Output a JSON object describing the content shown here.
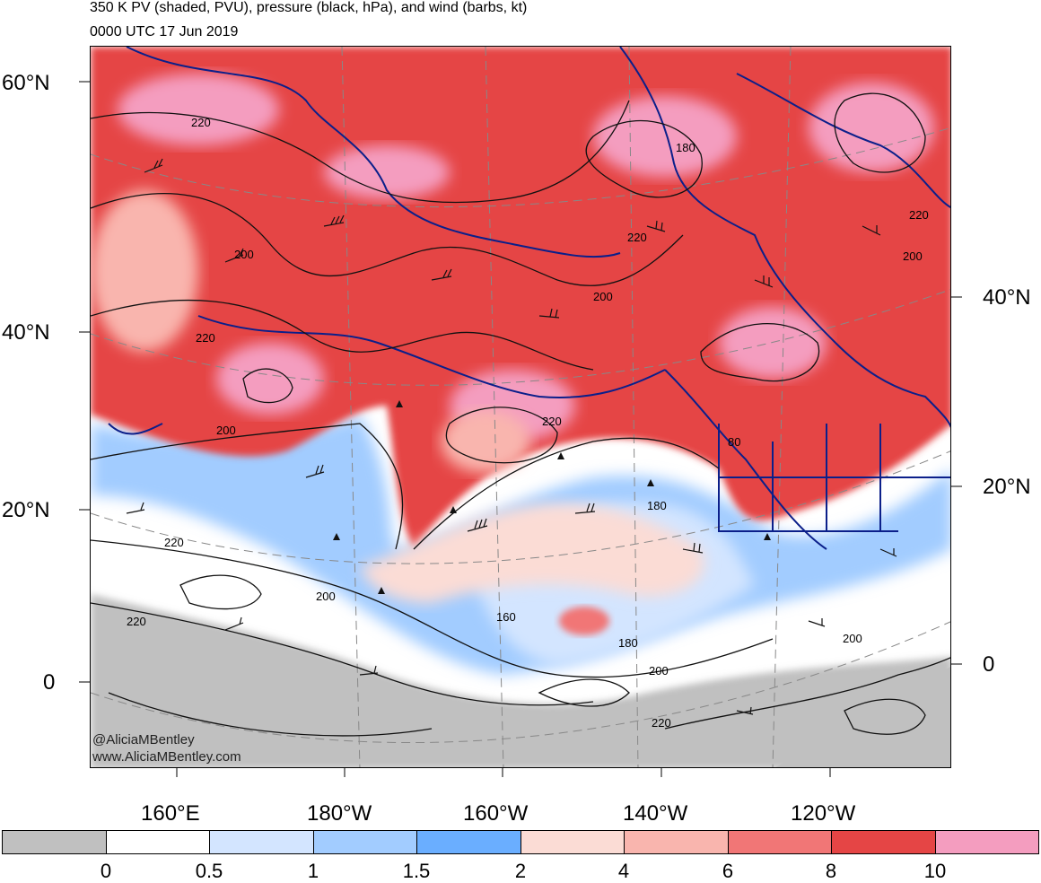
{
  "title_line1": "350 K PV (shaded, PVU), pressure (black, hPa), and wind (barbs, kt)",
  "title_line2": "0000 UTC 17 Jun 2019",
  "left_lat_labels": [
    "60°N",
    "40°N",
    "20°N",
    "0"
  ],
  "right_lat_labels": [
    "40°N",
    "20°N",
    "0"
  ],
  "lon_labels": [
    "160°E",
    "180°W",
    "160°W",
    "140°W",
    "120°W"
  ],
  "contour_labels": [
    "220",
    "200",
    "220",
    "200",
    "200",
    "220",
    "200",
    "220",
    "180",
    "180",
    "160",
    "180",
    "200",
    "200",
    "220",
    "220",
    "200",
    "220",
    "220",
    "80"
  ],
  "credit_line1": "@AliciaMBentley",
  "credit_line2": "www.AliciaMBentley.com",
  "colorbar": {
    "colors": [
      "#c0c0c0",
      "#ffffff",
      "#d3e5ff",
      "#a2ccff",
      "#6aaeff",
      "#fbdcd5",
      "#f9b5ae",
      "#f17676",
      "#e54545",
      "#f49dbf"
    ],
    "labels": [
      "0",
      "0.5",
      "1",
      "1.5",
      "2",
      "4",
      "6",
      "8",
      "10"
    ]
  }
}
